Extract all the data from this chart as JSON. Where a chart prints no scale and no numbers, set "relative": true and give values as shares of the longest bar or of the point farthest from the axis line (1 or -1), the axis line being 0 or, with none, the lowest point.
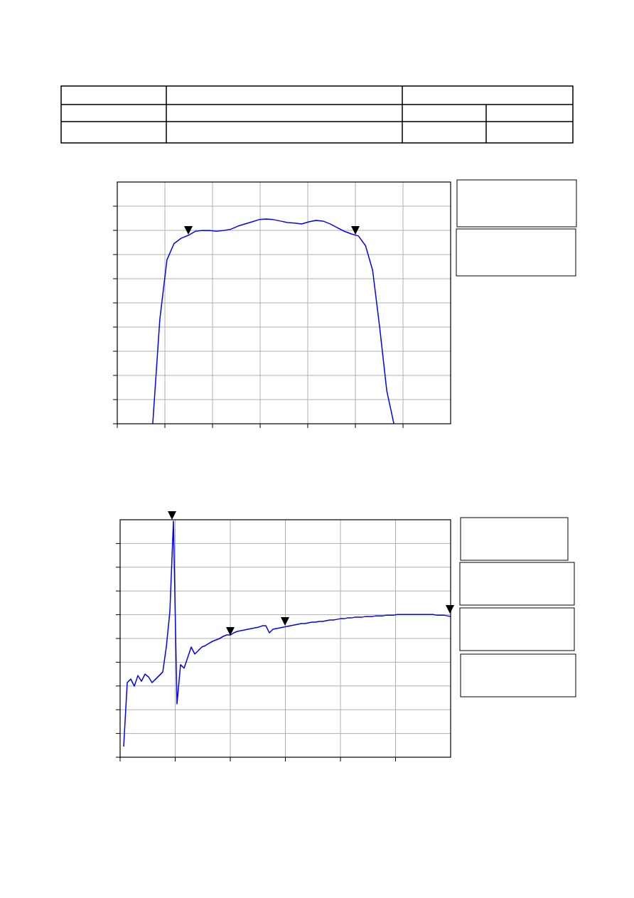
{
  "chart_data": [
    {
      "type": "line",
      "relative": true,
      "grid": true,
      "categories": [
        null,
        null,
        null,
        null,
        null,
        null,
        null,
        null,
        null,
        null,
        null,
        null,
        null,
        null,
        null,
        null,
        null,
        null,
        null,
        null,
        null,
        null,
        null,
        null,
        null,
        null,
        null,
        null,
        null,
        null,
        null,
        null,
        null,
        null,
        null,
        null,
        null,
        null,
        null,
        null,
        null,
        null,
        null,
        null,
        null,
        null,
        null,
        null
      ],
      "series": [
        {
          "color": "#0000ff",
          "values": [
            null,
            null,
            null,
            null,
            null,
            0,
            0.51,
            0.8,
            0.88,
            0.906,
            0.92,
            0.94,
            0.944,
            0.944,
            0.94,
            0.944,
            0.95,
            0.965,
            0.976,
            0.986,
            0.997,
            1,
            0.997,
            0.99,
            0.983,
            0.98,
            0.976,
            0.986,
            0.993,
            0.99,
            0.976,
            0.958,
            0.94,
            0.927,
            0.917,
            0.87,
            0.75,
            0.47,
            0.16,
            0,
            null,
            null,
            null,
            null,
            null,
            null,
            null,
            null
          ]
        }
      ]
    },
    {
      "type": "line",
      "relative": true,
      "grid": true,
      "categories": [
        null,
        null,
        null,
        null,
        null,
        null,
        null,
        null,
        null,
        null,
        null,
        null,
        null,
        null,
        null,
        null,
        null,
        null,
        null,
        null,
        null,
        null,
        null,
        null,
        null,
        null,
        null,
        null,
        null,
        null,
        null,
        null,
        null,
        null,
        null,
        null,
        null,
        null,
        null,
        null,
        null,
        null,
        null,
        null,
        null,
        null,
        null,
        null,
        null,
        null,
        null,
        null,
        null,
        null,
        null,
        null,
        null,
        null,
        null,
        null,
        null,
        null,
        null,
        null,
        null,
        null,
        null,
        null,
        null,
        null,
        null,
        null,
        null,
        null,
        null,
        null,
        null,
        null,
        null,
        null,
        null,
        null,
        null,
        null,
        null,
        null,
        null,
        null,
        null,
        null,
        null,
        null,
        null,
        null
      ],
      "series": [
        {
          "color": "#0000ff",
          "values": [
            null,
            0.045,
            0.316,
            0.331,
            0.301,
            0.346,
            0.322,
            0.352,
            0.34,
            0.316,
            0.331,
            0.346,
            0.361,
            0.467,
            0.617,
            1,
            0.226,
            0.392,
            0.377,
            0.422,
            0.467,
            0.437,
            0.452,
            0.467,
            0.473,
            0.482,
            0.491,
            0.497,
            0.503,
            0.512,
            0.518,
            0.518,
            0.527,
            0.533,
            0.536,
            0.539,
            0.542,
            0.545,
            0.548,
            0.551,
            0.557,
            0.557,
            0.527,
            0.542,
            0.545,
            0.548,
            0.551,
            0.554,
            0.557,
            0.56,
            0.563,
            0.566,
            0.566,
            0.569,
            0.572,
            0.572,
            0.575,
            0.575,
            0.578,
            0.581,
            0.581,
            0.584,
            0.587,
            0.587,
            0.59,
            0.59,
            0.593,
            0.593,
            0.593,
            0.596,
            0.596,
            0.596,
            0.599,
            0.599,
            0.599,
            0.602,
            0.602,
            0.602,
            0.605,
            0.605,
            0.605,
            0.605,
            0.605,
            0.605,
            0.605,
            0.605,
            0.605,
            0.605,
            0.605,
            0.602,
            0.602,
            0.602,
            0.599,
            0.596
          ]
        }
      ]
    }
  ]
}
